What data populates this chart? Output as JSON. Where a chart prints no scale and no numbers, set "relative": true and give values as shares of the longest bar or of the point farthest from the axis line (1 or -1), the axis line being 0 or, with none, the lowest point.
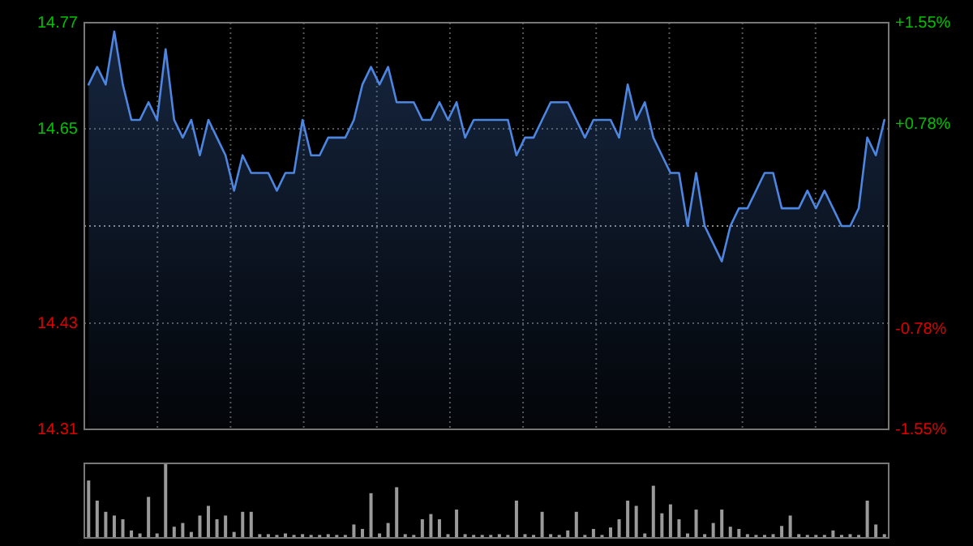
{
  "chart_data": [
    {
      "type": "area",
      "categories": [
        null,
        null,
        null,
        null,
        null,
        null,
        null,
        null,
        null,
        null,
        null,
        null,
        null,
        null,
        null,
        null,
        null,
        null,
        null,
        null,
        null,
        null,
        null,
        null,
        null,
        null,
        null,
        null,
        null,
        null,
        null,
        null,
        null,
        null,
        null,
        null,
        null,
        null,
        null,
        null,
        null,
        null,
        null,
        null,
        null,
        null,
        null,
        null,
        null,
        null,
        null,
        null,
        null,
        null,
        null,
        null,
        null,
        null,
        null,
        null,
        null,
        null,
        null,
        null,
        null,
        null,
        null,
        null,
        null,
        null,
        null,
        null,
        null,
        null,
        null,
        null,
        null,
        null,
        null,
        null,
        null,
        null,
        null,
        null,
        null,
        null,
        null,
        null,
        null,
        null,
        null,
        null,
        null,
        null
      ],
      "series": [
        {
          "color": "#4d86e0",
          "values": [
            14.7,
            14.72,
            14.7,
            14.76,
            14.7,
            14.66,
            14.66,
            14.68,
            14.66,
            14.74,
            14.66,
            14.64,
            14.66,
            14.62,
            14.66,
            14.64,
            14.62,
            14.58,
            14.62,
            14.6,
            14.6,
            14.6,
            14.58,
            14.6,
            14.6,
            14.66,
            14.62,
            14.62,
            14.64,
            14.64,
            14.64,
            14.66,
            14.7,
            14.72,
            14.7,
            14.72,
            14.68,
            14.68,
            14.68,
            14.66,
            14.66,
            14.68,
            14.66,
            14.68,
            14.64,
            14.66,
            14.66,
            14.66,
            14.66,
            14.66,
            14.62,
            14.64,
            14.64,
            14.66,
            14.68,
            14.68,
            14.68,
            14.66,
            14.64,
            14.66,
            14.66,
            14.66,
            14.64,
            14.7,
            14.66,
            14.68,
            14.64,
            14.62,
            14.6,
            14.6,
            14.54,
            14.6,
            14.54,
            14.52,
            14.5,
            14.54,
            14.56,
            14.56,
            14.58,
            14.6,
            14.6,
            14.56,
            14.56,
            14.56,
            14.58,
            14.56,
            14.58,
            14.56,
            14.54,
            14.54,
            14.56,
            14.64,
            14.62,
            14.66
          ]
        }
      ],
      "ylim": [
        14.31,
        14.77
      ],
      "yticks": [
        14.31,
        14.43,
        14.65,
        14.77
      ],
      "y2lim": [
        -1.55,
        1.55
      ],
      "y2ticks": [
        {
          "value": -1.55,
          "label": "-1.55%"
        },
        {
          "value": -0.78,
          "label": "-0.78%"
        },
        {
          "value": 0.78,
          "label": "+0.78%"
        },
        {
          "value": 1.55,
          "label": "+1.55%"
        }
      ],
      "ref_lines": [
        {
          "axis": "y",
          "value": 14.54,
          "color": "#888888",
          "line_style": "dotted"
        }
      ],
      "grid": true
    },
    {
      "type": "bar",
      "relative": true,
      "color": "#9a9a9a",
      "categories": [
        null,
        null,
        null,
        null,
        null,
        null,
        null,
        null,
        null,
        null,
        null,
        null,
        null,
        null,
        null,
        null,
        null,
        null,
        null,
        null,
        null,
        null,
        null,
        null,
        null,
        null,
        null,
        null,
        null,
        null,
        null,
        null,
        null,
        null,
        null,
        null,
        null,
        null,
        null,
        null,
        null,
        null,
        null,
        null,
        null,
        null,
        null,
        null,
        null,
        null,
        null,
        null,
        null,
        null,
        null,
        null,
        null,
        null,
        null,
        null,
        null,
        null,
        null,
        null,
        null,
        null,
        null,
        null,
        null,
        null,
        null,
        null,
        null,
        null,
        null,
        null,
        null,
        null,
        null,
        null,
        null,
        null,
        null,
        null,
        null,
        null,
        null,
        null,
        null,
        null,
        null,
        null,
        null,
        null
      ],
      "values": [
        0.77,
        0.5,
        0.35,
        0.3,
        0.25,
        0.1,
        0.06,
        0.55,
        0.06,
        1,
        0.15,
        0.2,
        0.08,
        0.3,
        0.43,
        0.25,
        0.3,
        0.08,
        0.35,
        0.35,
        0.05,
        0.05,
        0.04,
        0.06,
        0.04,
        0.05,
        0.04,
        0.04,
        0.05,
        0.04,
        0.04,
        0.18,
        0.12,
        0.6,
        0.06,
        0.2,
        0.68,
        0.05,
        0.04,
        0.25,
        0.32,
        0.25,
        0.05,
        0.38,
        0.05,
        0.04,
        0.04,
        0.04,
        0.05,
        0.04,
        0.5,
        0.05,
        0.04,
        0.35,
        0.05,
        0.04,
        0.1,
        0.35,
        0.04,
        0.12,
        0.04,
        0.14,
        0.25,
        0.5,
        0.43,
        0.06,
        0.7,
        0.33,
        0.45,
        0.25,
        0.06,
        0.38,
        0.05,
        0.2,
        0.38,
        0.15,
        0.12,
        0.05,
        0.04,
        0.04,
        0.05,
        0.16,
        0.3,
        0.05,
        0.04,
        0.04,
        0.04,
        0.1,
        0.04,
        0.05,
        0.04,
        0.5,
        0.18,
        0.05
      ]
    }
  ]
}
